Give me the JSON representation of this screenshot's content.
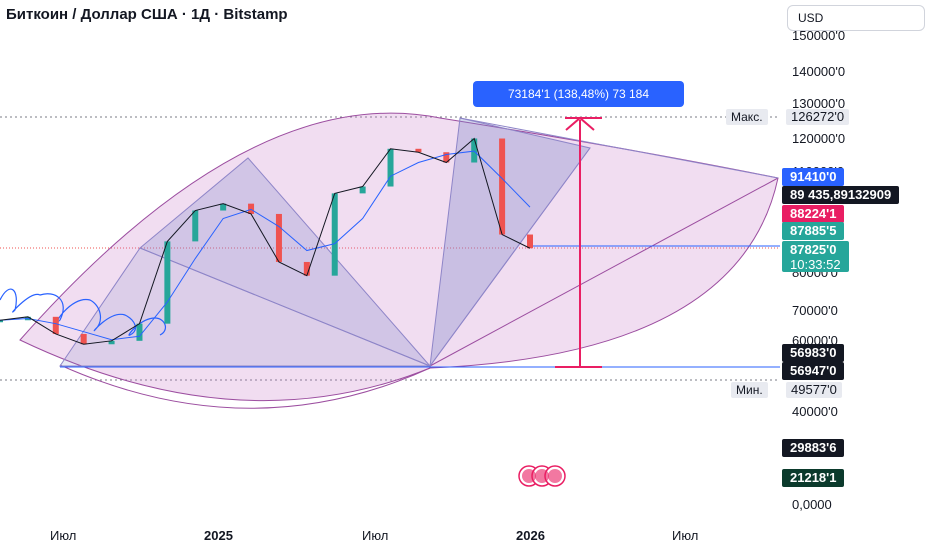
{
  "header": {
    "title": "Биткоин / Доллар США · 1Д · Bitstamp",
    "currency": "USD"
  },
  "axis": {
    "y_ticks": [
      "150000'0",
      "140000'0",
      "130000'0",
      "120000'0",
      "110000'0",
      "80000'0",
      "70000'0",
      "60000'0",
      "40000'0",
      "0,0000"
    ],
    "x_ticks": [
      "Июл",
      "2025",
      "Июл",
      "2026",
      "Июл"
    ]
  },
  "price_labels": {
    "max_marker": "Макс.",
    "max_value": "126272'0",
    "min_marker": "Мин.",
    "min_value": "49577'0",
    "blue_level": "91410'0",
    "last_price": "89 435,89132909",
    "pink_level": "88224'1",
    "green_level": "87885'5",
    "teal_level": "87825'0",
    "countdown": "10:33:52",
    "level_1": "56983'0",
    "level_2": "56947'0",
    "level_3": "29883'6",
    "level_4": "21218'1"
  },
  "measure": {
    "label": "73184'1 (138,48%) 73 184"
  },
  "colors": {
    "up": "#26a69a",
    "down": "#ef5350",
    "ma": "#2962ff",
    "fan_fill": "#c678c8",
    "fan_stroke": "#9c4ea0",
    "triangle_fill": "#7e88c8",
    "measure": "#e91e63",
    "last_price_bg": "#131722",
    "blue_label": "#2962ff",
    "pink_label": "#e91e63",
    "green_label": "#26a69a",
    "dark_label": "#131722",
    "dark_green_label": "#0b3a2c"
  },
  "chart_data": {
    "type": "line",
    "title": "Биткоин / Доллар США · 1Д · Bitstamp",
    "ylim": [
      0,
      150000
    ],
    "x": [
      "2024-05",
      "2024-06",
      "2024-07",
      "2024-08",
      "2024-09",
      "2024-10",
      "2024-11",
      "2024-12",
      "2025-01",
      "2025-02",
      "2025-03",
      "2025-04",
      "2025-05",
      "2025-06",
      "2025-07",
      "2025-08",
      "2025-09",
      "2025-10",
      "2025-11",
      "2025-12"
    ],
    "series": [
      {
        "values": [
          67000,
          68000,
          63000,
          60000,
          61000,
          66000,
          90000,
          99000,
          101000,
          98000,
          84000,
          80000,
          104000,
          106000,
          117000,
          116000,
          113000,
          120000,
          92000,
          88000
        ]
      }
    ],
    "annotations": {
      "max": 126272.0,
      "min": 49577.0,
      "measured_change": "73184'1 (138,48%) 73 184",
      "last_price": "89 435,89132909"
    }
  }
}
